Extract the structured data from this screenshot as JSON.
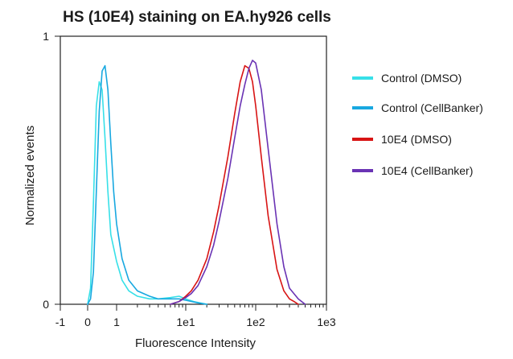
{
  "chart_data": {
    "type": "line",
    "title": "HS (10E4) staining on EA.hy926 cells",
    "xlabel": "Fluorescence Intensity",
    "ylabel": "Normalized events",
    "xscale": "biexponential",
    "xlim": [
      -1,
      1000
    ],
    "ylim": [
      0,
      1
    ],
    "x_ticks": [
      -1,
      0,
      1,
      10,
      100,
      1000
    ],
    "x_tick_labels": [
      "-1",
      "0",
      "1",
      "1e1",
      "1e2",
      "1e3"
    ],
    "y_ticks": [
      0,
      1
    ],
    "y_tick_labels": [
      "0",
      "1"
    ],
    "grid": false,
    "legend_position": "right",
    "series": [
      {
        "name": "Control (DMSO)",
        "color": "#37e0e8",
        "x": [
          0,
          0.1,
          0.2,
          0.3,
          0.4,
          0.5,
          0.6,
          0.7,
          0.8,
          1,
          1.2,
          1.5,
          2,
          3,
          4,
          6,
          8,
          10,
          13,
          16,
          20
        ],
        "y": [
          0,
          0.06,
          0.38,
          0.74,
          0.83,
          0.8,
          0.62,
          0.42,
          0.26,
          0.16,
          0.09,
          0.05,
          0.03,
          0.02,
          0.02,
          0.025,
          0.03,
          0.02,
          0.01,
          0.005,
          0
        ]
      },
      {
        "name": "Control (CellBanker)",
        "color": "#18a8e0",
        "x": [
          0,
          0.1,
          0.2,
          0.3,
          0.4,
          0.5,
          0.6,
          0.7,
          0.8,
          0.9,
          1,
          1.2,
          1.5,
          2,
          3,
          4,
          6,
          8,
          10,
          15,
          20
        ],
        "y": [
          0,
          0.02,
          0.12,
          0.42,
          0.72,
          0.87,
          0.89,
          0.8,
          0.6,
          0.42,
          0.3,
          0.17,
          0.09,
          0.05,
          0.03,
          0.02,
          0.02,
          0.02,
          0.015,
          0.005,
          0
        ]
      },
      {
        "name": "10E4 (DMSO)",
        "color": "#d81414",
        "x": [
          6,
          8,
          10,
          12,
          15,
          20,
          25,
          30,
          40,
          50,
          60,
          70,
          80,
          90,
          100,
          120,
          150,
          200,
          250,
          300,
          350,
          400
        ],
        "y": [
          0,
          0.01,
          0.03,
          0.05,
          0.09,
          0.17,
          0.27,
          0.37,
          0.55,
          0.71,
          0.83,
          0.89,
          0.88,
          0.83,
          0.74,
          0.55,
          0.33,
          0.13,
          0.05,
          0.02,
          0.01,
          0
        ]
      },
      {
        "name": "10E4 (CellBanker)",
        "color": "#6a33b4",
        "x": [
          6,
          8,
          10,
          12,
          15,
          20,
          25,
          30,
          40,
          50,
          60,
          70,
          80,
          90,
          100,
          120,
          150,
          200,
          250,
          300,
          400,
          500
        ],
        "y": [
          0,
          0.01,
          0.025,
          0.04,
          0.07,
          0.14,
          0.22,
          0.31,
          0.47,
          0.62,
          0.74,
          0.82,
          0.88,
          0.91,
          0.9,
          0.8,
          0.58,
          0.3,
          0.14,
          0.06,
          0.02,
          0
        ]
      }
    ]
  }
}
